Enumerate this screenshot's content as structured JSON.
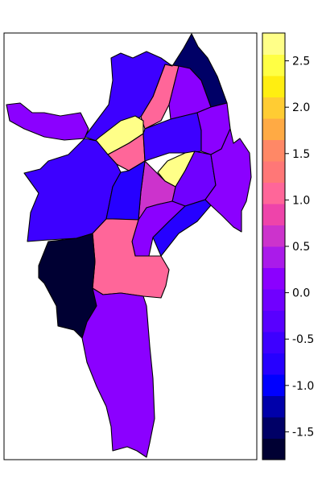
{
  "map": {
    "palette": [
      "#000033",
      "#000066",
      "#0000AA",
      "#0000FF",
      "#2600FF",
      "#3D00FF",
      "#5800FF",
      "#7000FF",
      "#8B00FF",
      "#AA1BEA",
      "#CC33CC",
      "#EE44AA",
      "#FF6699",
      "#FF7777",
      "#FF8866",
      "#FFAA44",
      "#FFCC33",
      "#FFEE11",
      "#FFFF44",
      "#FFFF88"
    ],
    "scale_min": -1.8,
    "scale_max": 2.8,
    "regions": [
      {
        "id": "north-tip",
        "value": -1.4
      },
      {
        "id": "north-pink",
        "value": 1.1
      },
      {
        "id": "north-purple",
        "value": 0.1
      },
      {
        "id": "northwest-big",
        "value": -0.6
      },
      {
        "id": "west-arm",
        "value": 0.1
      },
      {
        "id": "yellow-west",
        "value": 2.6
      },
      {
        "id": "pink-small",
        "value": 1.1
      },
      {
        "id": "center-blue",
        "value": -0.6
      },
      {
        "id": "northeast-purple",
        "value": 0.1
      },
      {
        "id": "yellow-east",
        "value": 2.6
      },
      {
        "id": "east-purple",
        "value": -0.1
      },
      {
        "id": "west-blue",
        "value": -0.6
      },
      {
        "id": "magenta-center",
        "value": 0.6
      },
      {
        "id": "center-blue-2",
        "value": -0.7
      },
      {
        "id": "purple-sw-center",
        "value": 0.1
      },
      {
        "id": "blue-east",
        "value": -0.8
      },
      {
        "id": "purple-far-east",
        "value": 0.1
      },
      {
        "id": "salmon-south",
        "value": 1.1
      },
      {
        "id": "navy-southwest",
        "value": -1.8
      },
      {
        "id": "south-purple",
        "value": 0.1
      }
    ]
  },
  "colorbar": {
    "ticks": [
      -1.5,
      -1.0,
      -0.5,
      0.0,
      0.5,
      1.0,
      1.5,
      2.0,
      2.5
    ],
    "tick_labels": [
      "-1.5",
      "-1.0",
      "-0.5",
      "0.0",
      "0.5",
      "1.0",
      "1.5",
      "2.0",
      "2.5"
    ]
  }
}
